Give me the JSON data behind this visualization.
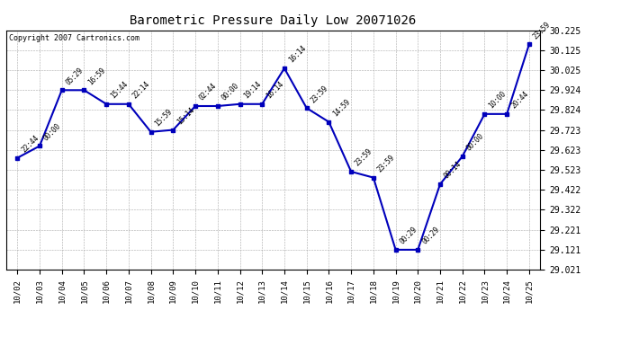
{
  "title": "Barometric Pressure Daily Low 20071026",
  "copyright": "Copyright 2007 Cartronics.com",
  "x_labels": [
    "10/02",
    "10/03",
    "10/04",
    "10/05",
    "10/06",
    "10/07",
    "10/08",
    "10/09",
    "10/10",
    "10/11",
    "10/12",
    "10/13",
    "10/14",
    "10/15",
    "10/16",
    "10/17",
    "10/18",
    "10/19",
    "10/20",
    "10/21",
    "10/22",
    "10/23",
    "10/24",
    "10/25"
  ],
  "y_values": [
    29.583,
    29.643,
    29.924,
    29.924,
    29.854,
    29.854,
    29.714,
    29.724,
    29.844,
    29.844,
    29.854,
    29.854,
    30.034,
    29.834,
    29.764,
    29.514,
    29.484,
    29.121,
    29.121,
    29.451,
    29.591,
    29.804,
    29.804,
    30.155
  ],
  "time_labels": [
    "22:44",
    "00:00",
    "05:29",
    "16:59",
    "15:44",
    "22:14",
    "15:59",
    "15:14",
    "02:44",
    "00:00",
    "19:14",
    "16:14",
    "16:14",
    "23:59",
    "14:59",
    "23:59",
    "23:59",
    "00:29",
    "00:29",
    "00:14",
    "00:00",
    "10:00",
    "20:44",
    "23:59"
  ],
  "line_color": "#0000BB",
  "marker_color": "#0000BB",
  "bg_color": "#FFFFFF",
  "grid_color": "#AAAAAA",
  "y_min": 29.021,
  "y_max": 30.225,
  "y_ticks": [
    29.021,
    29.121,
    29.221,
    29.322,
    29.422,
    29.523,
    29.623,
    29.723,
    29.824,
    29.924,
    30.025,
    30.125,
    30.225
  ]
}
